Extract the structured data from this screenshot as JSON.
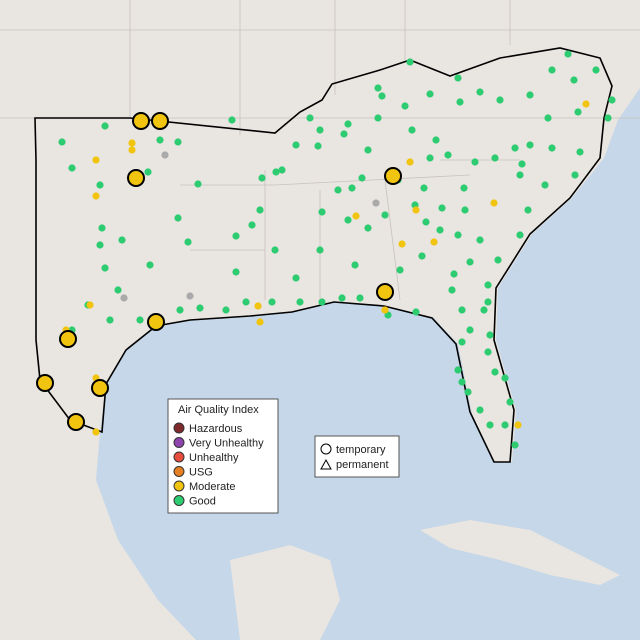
{
  "legend": {
    "title": "Air Quality Index",
    "items": [
      {
        "label": "Hazardous",
        "color": "#7e2a2a"
      },
      {
        "label": "Very Unhealthy",
        "color": "#8e44ad"
      },
      {
        "label": "Unhealthy",
        "color": "#e74c3c"
      },
      {
        "label": "USG",
        "color": "#e67e22"
      },
      {
        "label": "Moderate",
        "color": "#f1c40f"
      },
      {
        "label": "Good",
        "color": "#2ecc71"
      }
    ]
  },
  "shape_legend": {
    "items": [
      "temporary",
      "permanent"
    ]
  }
}
